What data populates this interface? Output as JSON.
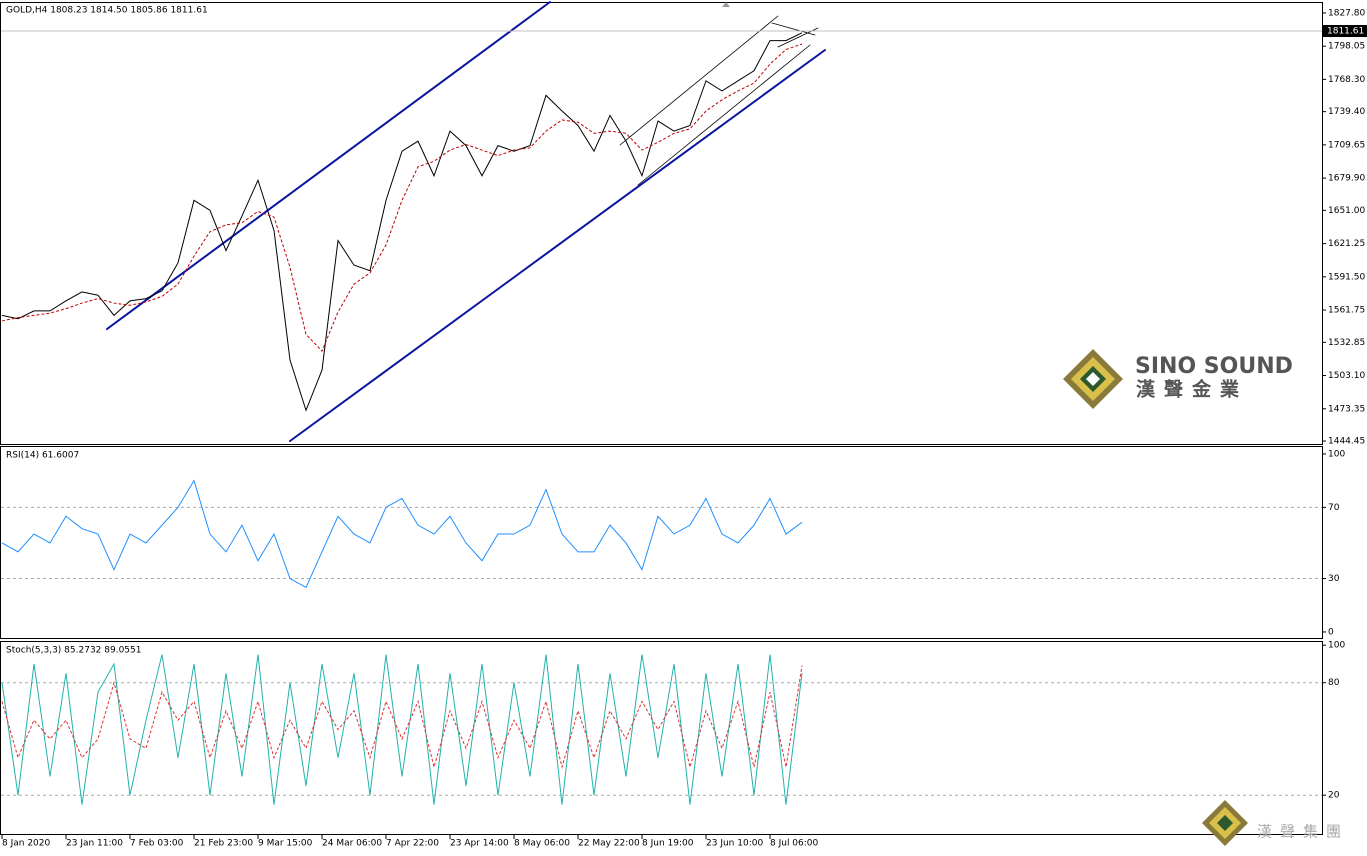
{
  "chart_data": [
    {
      "type": "line",
      "title": "GOLD,H4 1808.23 1814.50 1805.86 1811.61",
      "last_price": 1811.61,
      "categories": [
        "8 Jan 2020",
        null,
        null,
        null,
        "23 Jan 11:00",
        null,
        null,
        null,
        "7 Feb 03:00",
        null,
        null,
        null,
        "21 Feb 23:00",
        null,
        null,
        null,
        "9 Mar 15:00",
        null,
        null,
        null,
        "24 Mar 06:00",
        null,
        null,
        null,
        "7 Apr 22:00",
        null,
        null,
        null,
        "23 Apr 14:00",
        null,
        null,
        null,
        "8 May 06:00",
        null,
        null,
        null,
        "22 May 22:00",
        null,
        null,
        null,
        "8 Jun 19:00",
        null,
        null,
        null,
        "23 Jun 10:00",
        null,
        null,
        null,
        "8 Jul 06:00",
        null,
        null
      ],
      "series": [
        {
          "color": "#000000",
          "values": [
            1557,
            1554,
            1561,
            1561,
            1570,
            1578,
            1575,
            1557,
            1570,
            1572,
            1579,
            1604,
            1660,
            1651,
            1615,
            1646,
            1678,
            1633,
            1517,
            1472,
            1508,
            1624,
            1602,
            1597,
            1660,
            1704,
            1713,
            1682,
            1722,
            1709,
            1682,
            1709,
            1704,
            1709,
            1754,
            1740,
            1727,
            1704,
            1736,
            1713,
            1682,
            1731,
            1722,
            1727,
            1767,
            1758,
            1767,
            1776,
            1803,
            1803,
            1810
          ]
        },
        {
          "color": "#c00000",
          "dashed": true,
          "values": [
            1552,
            1555,
            1557,
            1559,
            1563,
            1568,
            1572,
            1568,
            1566,
            1569,
            1574,
            1585,
            1610,
            1632,
            1638,
            1640,
            1650,
            1645,
            1600,
            1540,
            1525,
            1560,
            1585,
            1595,
            1620,
            1660,
            1690,
            1695,
            1705,
            1710,
            1705,
            1700,
            1705,
            1707,
            1722,
            1732,
            1730,
            1720,
            1722,
            1720,
            1705,
            1712,
            1720,
            1724,
            1740,
            1750,
            1758,
            1765,
            1782,
            1795,
            1800
          ]
        }
      ],
      "ylim": [
        1441.8,
        1836.7
      ],
      "yticks": [
        {
          "value": 1827.8,
          "label": "1827.80"
        },
        1798.05,
        {
          "value": 1768.3,
          "label": "1768.30"
        },
        {
          "value": 1739.4,
          "label": "1739.40"
        },
        1709.65,
        {
          "value": 1679.9,
          "label": "1679.90"
        },
        {
          "value": 1651,
          "label": "1651.00"
        },
        1621.25,
        {
          "value": 1591.5,
          "label": "1591.50"
        },
        1561.75,
        1532.85,
        {
          "value": 1503.1,
          "label": "1503.10"
        },
        1473.35,
        1444.45
      ]
    },
    {
      "type": "line",
      "title": "RSI(14) 61.6007",
      "series": [
        {
          "color": "#1e90ff",
          "values": [
            50,
            45,
            55,
            50,
            65,
            58,
            55,
            35,
            55,
            50,
            60,
            70,
            85,
            55,
            45,
            60,
            40,
            55,
            30,
            25,
            45,
            65,
            55,
            50,
            70,
            75,
            60,
            55,
            65,
            50,
            40,
            55,
            55,
            60,
            80,
            55,
            45,
            45,
            60,
            50,
            35,
            65,
            55,
            60,
            75,
            55,
            50,
            60,
            75,
            55,
            61.6
          ]
        }
      ],
      "ylim": [
        -3.4,
        103.9
      ],
      "yticks": [
        100,
        70,
        30,
        0
      ],
      "levels": [
        70,
        30
      ]
    },
    {
      "type": "line",
      "title": "Stoch(5,3,3) 85.2732 89.0551",
      "series": [
        {
          "color": "#20b2aa",
          "values": [
            80,
            20,
            90,
            30,
            85,
            15,
            75,
            90,
            20,
            60,
            95,
            40,
            90,
            20,
            85,
            30,
            95,
            15,
            80,
            25,
            90,
            40,
            85,
            20,
            95,
            30,
            90,
            15,
            85,
            25,
            90,
            20,
            80,
            30,
            95,
            15,
            90,
            20,
            85,
            30,
            95,
            40,
            90,
            15,
            85,
            30,
            90,
            20,
            95,
            15,
            85.3
          ]
        },
        {
          "color": "#e03030",
          "dashed": true,
          "values": [
            70,
            40,
            60,
            50,
            60,
            40,
            50,
            80,
            50,
            45,
            75,
            60,
            70,
            40,
            65,
            45,
            70,
            40,
            60,
            45,
            70,
            55,
            65,
            40,
            70,
            50,
            70,
            35,
            65,
            45,
            70,
            40,
            60,
            45,
            70,
            35,
            65,
            40,
            65,
            50,
            70,
            55,
            70,
            35,
            65,
            45,
            70,
            35,
            75,
            35,
            89.1
          ]
        }
      ],
      "ylim": [
        -0.7,
        101.7
      ],
      "yticks": [
        100,
        80,
        20
      ],
      "levels": [
        80,
        20
      ]
    }
  ],
  "watermark": {
    "brand": "SINO SOUND",
    "brand_cn": "漢聲金業",
    "footer_cn": "漢聲集團"
  }
}
